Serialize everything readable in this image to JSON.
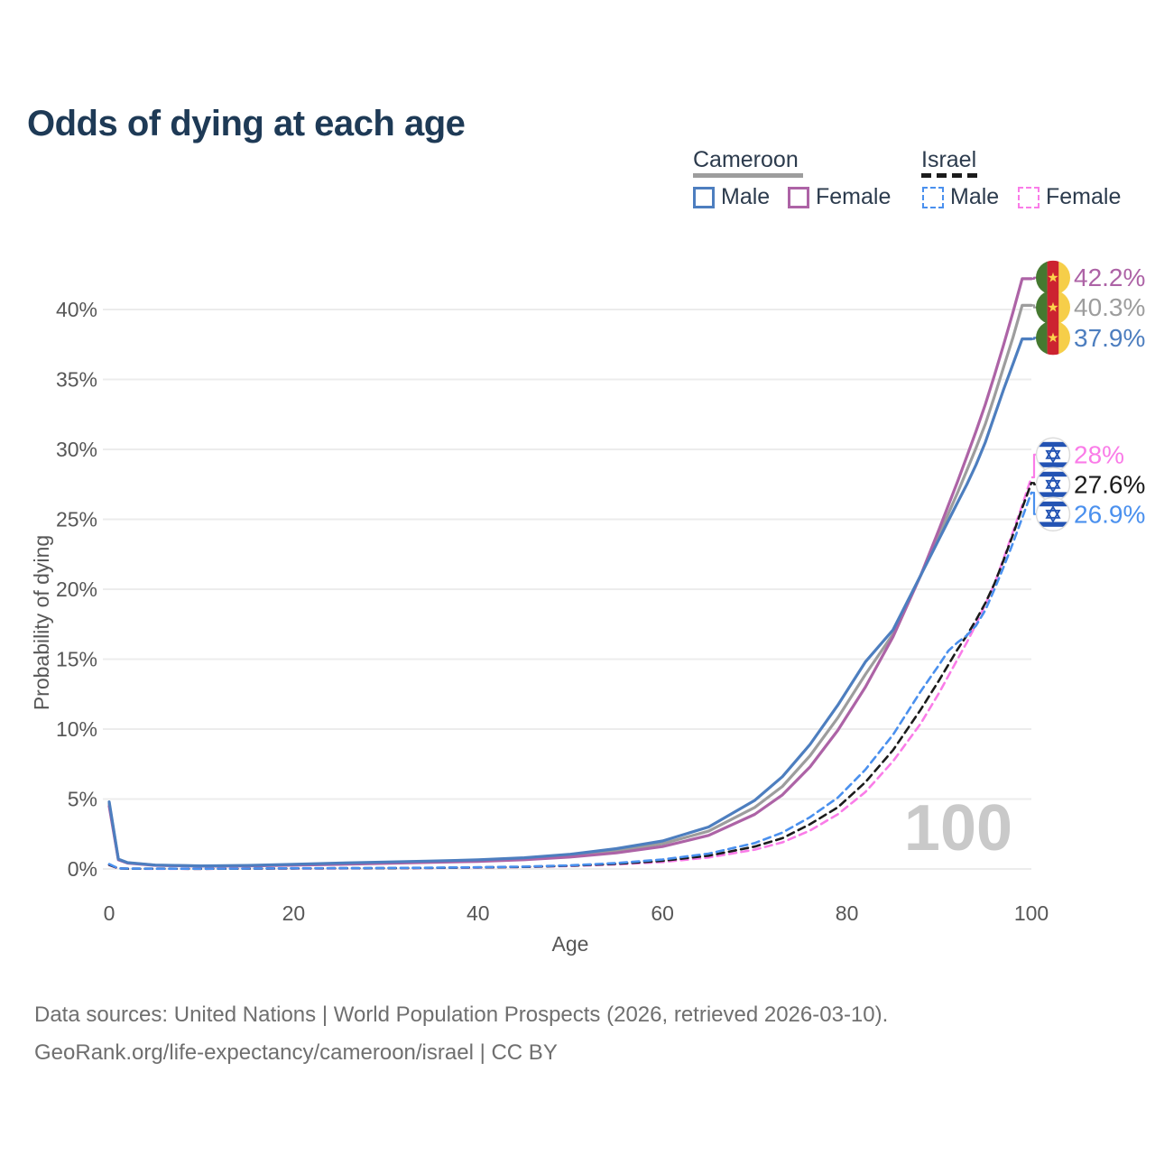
{
  "page": {
    "title": "Odds of dying at each age",
    "background": "#ffffff"
  },
  "legend": {
    "groups": [
      {
        "country": "Cameroon",
        "line_style": "solid",
        "underline_color": "#9d9d9d",
        "items": [
          {
            "label": "Male",
            "color": "#4d7ebf"
          },
          {
            "label": "Female",
            "color": "#ad63a6"
          }
        ]
      },
      {
        "country": "Israel",
        "line_style": "dashed",
        "underline_color": "#1b1b1b",
        "items": [
          {
            "label": "Male",
            "color": "#4a90ee"
          },
          {
            "label": "Female",
            "color": "#fa7ce8"
          }
        ]
      }
    ]
  },
  "chart_data": {
    "type": "line",
    "title": "Odds of dying at each age",
    "xlabel": "Age",
    "ylabel": "Probability of dying",
    "xlim": [
      0,
      100
    ],
    "ylim": [
      0,
      43.5
    ],
    "grid": "horizontal",
    "legend_position": "top-right",
    "watermark": "100",
    "xticks": [
      {
        "value": 0,
        "label": "0"
      },
      {
        "value": 20,
        "label": "20"
      },
      {
        "value": 40,
        "label": "40"
      },
      {
        "value": 60,
        "label": "60"
      },
      {
        "value": 80,
        "label": "80"
      },
      {
        "value": 100,
        "label": "100"
      }
    ],
    "yticks": [
      {
        "value": 0,
        "label": "0%"
      },
      {
        "value": 5,
        "label": "5%"
      },
      {
        "value": 10,
        "label": "10%"
      },
      {
        "value": 15,
        "label": "15%"
      },
      {
        "value": 20,
        "label": "20%"
      },
      {
        "value": 25,
        "label": "25%"
      },
      {
        "value": 30,
        "label": "30%"
      },
      {
        "value": 35,
        "label": "35%"
      },
      {
        "value": 40,
        "label": "40%"
      }
    ],
    "ages": [
      0,
      1,
      2,
      5,
      10,
      15,
      20,
      25,
      30,
      35,
      40,
      45,
      50,
      55,
      60,
      65,
      70,
      73,
      76,
      79,
      82,
      85,
      88,
      90,
      91,
      92,
      93,
      94,
      95,
      96,
      97,
      98,
      99,
      100
    ],
    "series": [
      {
        "name": "Cameroon Male",
        "country": "Cameroon",
        "sex": "male",
        "style": "solid",
        "color": "#4d7ebf",
        "flag": "cameroon",
        "end_label": "37.9%",
        "values": [
          4.8,
          0.7,
          0.45,
          0.28,
          0.22,
          0.25,
          0.33,
          0.42,
          0.5,
          0.57,
          0.65,
          0.8,
          1.05,
          1.45,
          2.0,
          3.0,
          4.9,
          6.6,
          8.9,
          11.7,
          14.8,
          17.1,
          21.0,
          23.6,
          24.9,
          26.2,
          27.5,
          28.9,
          30.5,
          32.4,
          34.3,
          36.1,
          37.9,
          37.9
        ]
      },
      {
        "name": "Cameroon Female",
        "country": "Cameroon",
        "sex": "female",
        "style": "solid",
        "color": "#ad63a6",
        "flag": "cameroon",
        "end_label": "42.2%",
        "values": [
          4.5,
          0.65,
          0.42,
          0.26,
          0.2,
          0.22,
          0.27,
          0.33,
          0.4,
          0.47,
          0.54,
          0.66,
          0.85,
          1.15,
          1.6,
          2.4,
          3.9,
          5.3,
          7.3,
          9.9,
          13.0,
          16.6,
          21.0,
          24.3,
          26.0,
          27.7,
          29.5,
          31.3,
          33.2,
          35.3,
          37.5,
          39.8,
          42.2,
          42.2
        ]
      },
      {
        "name": "Cameroon Both sexes",
        "country": "Cameroon",
        "sex": "both",
        "style": "solid",
        "color": "#9d9d9d",
        "flag": "cameroon",
        "end_label": "40.3%",
        "values": [
          4.65,
          0.68,
          0.44,
          0.27,
          0.21,
          0.24,
          0.3,
          0.38,
          0.45,
          0.52,
          0.6,
          0.73,
          0.95,
          1.3,
          1.8,
          2.7,
          4.4,
          5.9,
          8.1,
          10.8,
          13.9,
          16.8,
          21.0,
          23.9,
          25.4,
          26.9,
          28.5,
          30.1,
          31.8,
          33.8,
          35.9,
          38.0,
          40.3,
          40.3
        ]
      },
      {
        "name": "Israel Male",
        "country": "Israel",
        "sex": "male",
        "style": "dashed",
        "color": "#4a90ee",
        "flag": "israel",
        "end_label": "26.9%",
        "values": [
          0.35,
          0.04,
          0.03,
          0.02,
          0.02,
          0.03,
          0.05,
          0.06,
          0.07,
          0.09,
          0.12,
          0.17,
          0.26,
          0.42,
          0.68,
          1.1,
          1.85,
          2.6,
          3.7,
          5.1,
          7.1,
          9.6,
          12.7,
          14.6,
          15.6,
          16.2,
          16.7,
          17.4,
          18.5,
          20.0,
          21.6,
          23.3,
          25.1,
          26.9
        ]
      },
      {
        "name": "Israel Female",
        "country": "Israel",
        "sex": "female",
        "style": "dashed",
        "color": "#fa7ce8",
        "flag": "israel",
        "end_label": "28%",
        "values": [
          0.28,
          0.03,
          0.02,
          0.015,
          0.013,
          0.02,
          0.03,
          0.04,
          0.05,
          0.07,
          0.1,
          0.14,
          0.21,
          0.33,
          0.5,
          0.82,
          1.38,
          1.9,
          2.75,
          3.9,
          5.5,
          7.7,
          10.4,
          12.6,
          13.8,
          15.0,
          16.2,
          17.5,
          18.9,
          20.4,
          22.2,
          24.1,
          26.0,
          28.0
        ]
      },
      {
        "name": "Israel Both sexes",
        "country": "Israel",
        "sex": "both",
        "style": "dashed",
        "color": "#1b1b1b",
        "flag": "israel",
        "end_label": "27.6%",
        "values": [
          0.3,
          0.04,
          0.02,
          0.02,
          0.015,
          0.025,
          0.04,
          0.05,
          0.06,
          0.08,
          0.11,
          0.15,
          0.23,
          0.37,
          0.58,
          0.95,
          1.6,
          2.2,
          3.2,
          4.4,
          6.2,
          8.5,
          11.4,
          13.5,
          14.6,
          15.7,
          16.7,
          17.8,
          19.0,
          20.4,
          22.1,
          23.9,
          25.8,
          27.6
        ]
      }
    ]
  },
  "flags": {
    "cameroon": "cameroon-flag-icon",
    "israel": "israel-flag-icon"
  },
  "footer": {
    "line1": "Data sources: United Nations | World Population Prospects (2026, retrieved 2026-03-10).",
    "line2": "GeoRank.org/life-expectancy/cameroon/israel | CC BY"
  }
}
